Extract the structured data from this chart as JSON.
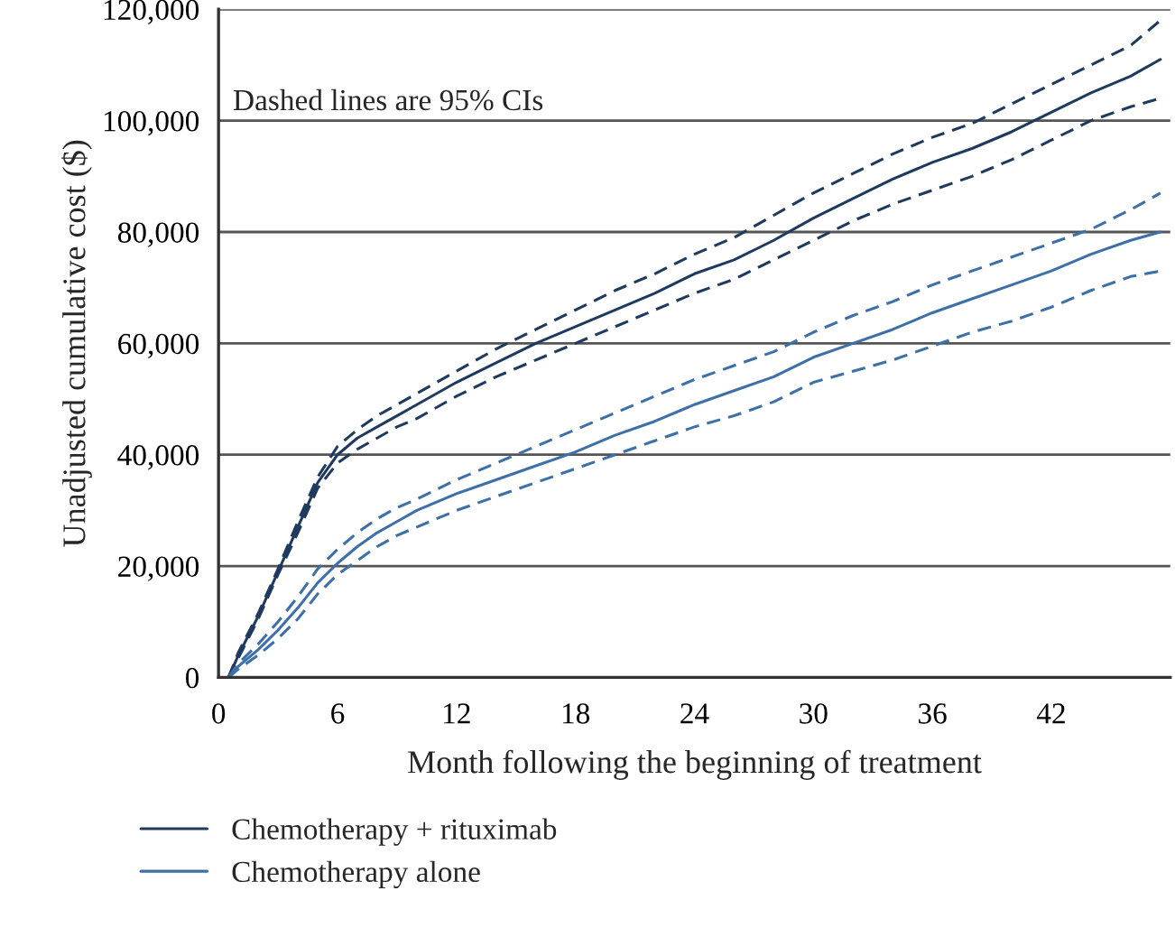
{
  "chart_data": {
    "type": "line",
    "xlabel": "Month following the beginning of treatment",
    "ylabel": "Unadjusted cumulative cost ($)",
    "annotations": [
      "Dashed lines are 95% CIs"
    ],
    "x": [
      0.5,
      1,
      2,
      3,
      4,
      5,
      6,
      7,
      8,
      9,
      10,
      12,
      14,
      16,
      18,
      20,
      22,
      24,
      26,
      28,
      30,
      32,
      34,
      36,
      38,
      40,
      42,
      44,
      46,
      47.5
    ],
    "series": [
      {
        "name": "Chemotherapy + rituximab",
        "color": "#1f3a5f",
        "line_style": "solid",
        "values": [
          0,
          4000,
          11000,
          19000,
          27000,
          35000,
          40000,
          43000,
          45000,
          47000,
          49000,
          53000,
          56500,
          60000,
          63000,
          66000,
          69000,
          72500,
          75000,
          78500,
          82500,
          86000,
          89500,
          92500,
          95000,
          98000,
          101500,
          105000,
          108000,
          111000
        ]
      },
      {
        "color": "#1f3a5f",
        "line_style": "dashed",
        "values": [
          0,
          4500,
          11500,
          19500,
          28000,
          36000,
          41500,
          44500,
          47000,
          49000,
          51000,
          55000,
          59000,
          62500,
          66000,
          69500,
          72500,
          76000,
          79000,
          83000,
          87000,
          90500,
          94000,
          97000,
          99500,
          103000,
          106500,
          110000,
          113500,
          118000
        ]
      },
      {
        "color": "#1f3a5f",
        "line_style": "dashed",
        "values": [
          0,
          3500,
          10500,
          18500,
          26000,
          34000,
          38500,
          41000,
          43000,
          45000,
          46500,
          50500,
          54000,
          57000,
          60000,
          63000,
          66000,
          69000,
          71500,
          75000,
          78500,
          82000,
          85000,
          87500,
          90000,
          93000,
          96500,
          100000,
          102500,
          104000
        ]
      },
      {
        "name": "Chemotherapy alone",
        "color": "#3d6fa8",
        "line_style": "solid",
        "values": [
          0,
          2000,
          5000,
          8500,
          12500,
          17000,
          20500,
          23500,
          26000,
          28000,
          30000,
          33000,
          35500,
          38000,
          40500,
          43500,
          46000,
          49000,
          51500,
          54000,
          57500,
          60000,
          62500,
          65500,
          68000,
          70500,
          73000,
          76000,
          78500,
          80000
        ]
      },
      {
        "color": "#3d6fa8",
        "line_style": "dashed",
        "values": [
          0,
          2500,
          6000,
          10000,
          14500,
          19500,
          23000,
          26000,
          28500,
          30500,
          32000,
          35500,
          38500,
          41500,
          44500,
          47500,
          50500,
          53500,
          56000,
          58500,
          62000,
          65000,
          67500,
          70500,
          73000,
          75500,
          78000,
          80500,
          84000,
          87000
        ]
      },
      {
        "color": "#3d6fa8",
        "line_style": "dashed",
        "values": [
          0,
          1500,
          4000,
          7000,
          10500,
          15000,
          18500,
          21000,
          23500,
          25500,
          27000,
          30000,
          32500,
          35000,
          37500,
          40000,
          42500,
          45000,
          47000,
          49500,
          53000,
          55000,
          57000,
          59500,
          62000,
          64000,
          66500,
          69500,
          72000,
          73000
        ]
      }
    ],
    "xlim": [
      0,
      48
    ],
    "xticks": [
      0,
      6,
      12,
      18,
      24,
      30,
      36,
      42
    ],
    "ylim": [
      0,
      120000
    ],
    "yticks": [
      {
        "value": 0,
        "label": "0"
      },
      {
        "value": 20000,
        "label": "20,000"
      },
      {
        "value": 40000,
        "label": "40,000"
      },
      {
        "value": 60000,
        "label": "60,000"
      },
      {
        "value": 80000,
        "label": "80,000"
      },
      {
        "value": 100000,
        "label": "100,000"
      },
      {
        "value": 120000,
        "label": "120,000"
      }
    ],
    "grid": "y",
    "legend": "bottom",
    "marker": "none"
  }
}
